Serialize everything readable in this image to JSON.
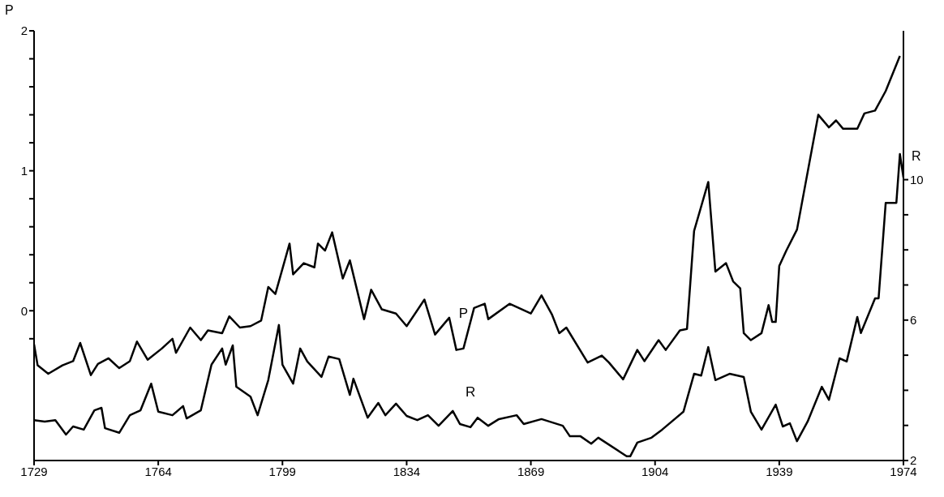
{
  "chart_data": {
    "type": "line",
    "ylabel": "P",
    "y2label": "R",
    "xlim": [
      1729,
      1974
    ],
    "xticks": [
      1729,
      1764,
      1799,
      1834,
      1869,
      1904,
      1939,
      1974
    ],
    "ylim": [
      -1.07,
      2
    ],
    "yticks": [
      {
        "value": -0.2,
        "label": null
      },
      0,
      {
        "value": 0.2,
        "label": null
      },
      {
        "value": 0.4,
        "label": null
      },
      {
        "value": 0.6,
        "label": null
      },
      {
        "value": 0.8,
        "label": null
      },
      1,
      {
        "value": 1.2,
        "label": null
      },
      {
        "value": 1.4,
        "label": null
      },
      {
        "value": 1.6,
        "label": null
      },
      {
        "value": 1.8,
        "label": null
      },
      2
    ],
    "y2lim": [
      2,
      14.24
    ],
    "y2ticks": [
      2,
      {
        "value": 3,
        "label": null
      },
      {
        "value": 4,
        "label": null
      },
      {
        "value": 5,
        "label": null
      },
      6,
      {
        "value": 7,
        "label": null
      },
      {
        "value": 8,
        "label": null
      },
      {
        "value": 9,
        "label": null
      },
      10
    ],
    "series": [
      {
        "name": "P",
        "color": "#000000",
        "x": [
          1729,
          1730,
          1733,
          1737,
          1740,
          1742,
          1745,
          1747,
          1750,
          1753,
          1756,
          1758,
          1761,
          1765,
          1768,
          1769,
          1773,
          1776,
          1778,
          1782,
          1784,
          1787,
          1790,
          1793,
          1795,
          1797,
          1801,
          1802,
          1805,
          1808,
          1809,
          1811,
          1813,
          1816,
          1818,
          1822,
          1824,
          1827,
          1831,
          1834,
          1839,
          1842,
          1846,
          1848,
          1850,
          1853,
          1856,
          1857,
          1863,
          1869,
          1872,
          1875,
          1877,
          1879,
          1885,
          1889,
          1891,
          1895,
          1899,
          1901,
          1905,
          1907,
          1911,
          1913,
          1915,
          1919,
          1921,
          1924,
          1926,
          1928,
          1929,
          1931,
          1934,
          1936,
          1937,
          1938,
          1939,
          1941,
          1944,
          1950,
          1953,
          1955,
          1957,
          1961,
          1963,
          1966,
          1969,
          1973
        ],
        "values": [
          -0.24,
          -0.39,
          -0.45,
          -0.39,
          -0.36,
          -0.23,
          -0.46,
          -0.38,
          -0.34,
          -0.41,
          -0.36,
          -0.22,
          -0.35,
          -0.27,
          -0.2,
          -0.3,
          -0.12,
          -0.21,
          -0.14,
          -0.16,
          -0.04,
          -0.12,
          -0.11,
          -0.07,
          0.17,
          0.12,
          0.48,
          0.26,
          0.34,
          0.31,
          0.48,
          0.43,
          0.56,
          0.23,
          0.36,
          -0.06,
          0.15,
          0.01,
          -0.02,
          -0.11,
          0.08,
          -0.17,
          -0.05,
          -0.28,
          -0.27,
          0.02,
          0.05,
          -0.06,
          0.05,
          -0.02,
          0.11,
          -0.03,
          -0.16,
          -0.12,
          -0.37,
          -0.32,
          -0.37,
          -0.49,
          -0.28,
          -0.36,
          -0.21,
          -0.28,
          -0.14,
          -0.13,
          0.57,
          0.92,
          0.28,
          0.34,
          0.21,
          0.16,
          -0.16,
          -0.21,
          -0.16,
          0.04,
          -0.08,
          -0.08,
          0.32,
          0.43,
          0.58,
          1.4,
          1.31,
          1.36,
          1.3,
          1.3,
          1.41,
          1.43,
          1.57,
          1.82
        ]
      },
      {
        "name": "R",
        "color": "#000000",
        "axis": "y2",
        "x": [
          1729,
          1732,
          1735,
          1738,
          1740,
          1743,
          1746,
          1748,
          1749,
          1753,
          1756,
          1759,
          1762,
          1764,
          1768,
          1771,
          1772,
          1776,
          1779,
          1782,
          1783,
          1785,
          1786,
          1790,
          1792,
          1795,
          1798,
          1799,
          1802,
          1804,
          1806,
          1810,
          1812,
          1815,
          1818,
          1819,
          1823,
          1826,
          1828,
          1831,
          1834,
          1837,
          1840,
          1843,
          1847,
          1849,
          1852,
          1854,
          1857,
          1860,
          1865,
          1867,
          1872,
          1878,
          1880,
          1883,
          1886,
          1888,
          1896,
          1897,
          1899,
          1903,
          1906,
          1912,
          1915,
          1917,
          1919,
          1921,
          1925,
          1929,
          1931,
          1934,
          1938,
          1940,
          1942,
          1944,
          1947,
          1951,
          1953,
          1956,
          1958,
          1961,
          1962,
          1966,
          1967,
          1969,
          1972,
          1973,
          1974
        ],
        "values": [
          3.15,
          3.11,
          3.15,
          2.74,
          2.97,
          2.88,
          3.43,
          3.5,
          2.92,
          2.79,
          3.29,
          3.43,
          4.19,
          3.39,
          3.29,
          3.55,
          3.2,
          3.43,
          4.73,
          5.19,
          4.73,
          5.28,
          4.1,
          3.82,
          3.29,
          4.29,
          5.86,
          4.73,
          4.19,
          5.19,
          4.82,
          4.38,
          4.96,
          4.89,
          3.87,
          4.33,
          3.22,
          3.64,
          3.29,
          3.62,
          3.27,
          3.15,
          3.29,
          2.99,
          3.41,
          3.04,
          2.95,
          3.22,
          2.99,
          3.18,
          3.29,
          3.04,
          3.18,
          2.99,
          2.69,
          2.69,
          2.48,
          2.65,
          2.12,
          2.12,
          2.51,
          2.65,
          2.88,
          3.39,
          4.47,
          4.42,
          5.23,
          4.29,
          4.47,
          4.38,
          3.39,
          2.88,
          3.59,
          2.97,
          3.06,
          2.55,
          3.11,
          4.1,
          3.73,
          4.91,
          4.82,
          6.09,
          5.63,
          6.62,
          6.62,
          9.34,
          9.34,
          10.73,
          10.06
        ]
      }
    ]
  }
}
